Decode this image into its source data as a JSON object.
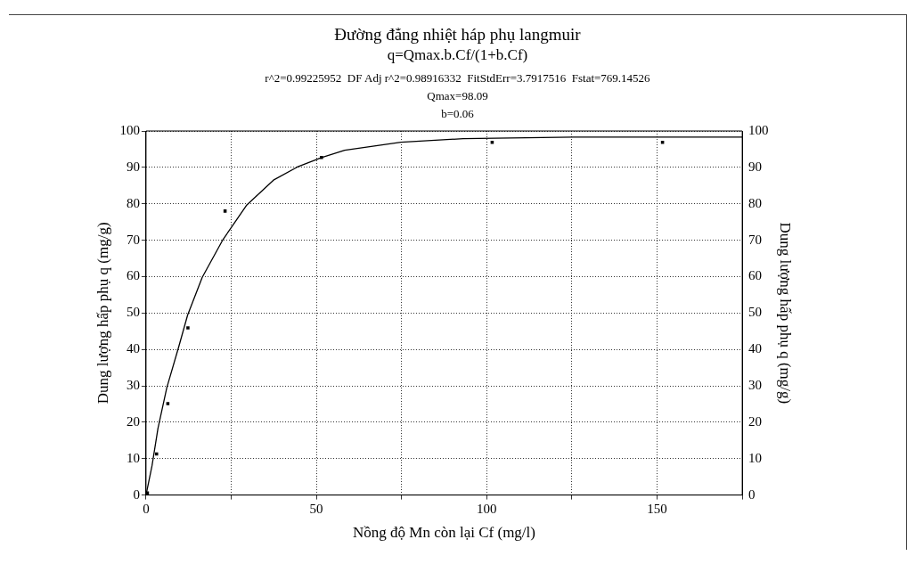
{
  "chart_data": {
    "type": "scatter",
    "title": "Đường đẳng nhiệt háp phụ langmuir",
    "subtitle": "q=Qmax.b.Cf/(1+b.Cf)",
    "annotations": [
      "r^2=0.99225952  DF Adj r^2=0.98916332  FitStdErr=3.7917516  Fstat=769.14526",
      "Qmax=98.09",
      "b=0.06"
    ],
    "xlabel": "Nồng độ Mn còn lại Cf (mg/l)",
    "ylabel": "Dung lượng hấp phụ q (mg/g)",
    "y2label": "Dung lượng hấp phụ q (mg/g)",
    "series": [
      {
        "type": "scatter",
        "color": "#000000",
        "marker": "square",
        "x": [
          0.4,
          3.1,
          6.4,
          12.3,
          23.2,
          51.5,
          101.6,
          151.6
        ],
        "values": [
          0.6,
          11.3,
          25.1,
          45.9,
          78,
          92.7,
          96.9,
          96.9
        ]
      },
      {
        "type": "line",
        "color": "#000000",
        "marker": "none",
        "line_style": "solid",
        "x": [
          0,
          1.75,
          3.5,
          6.1,
          9.6,
          12.2,
          16.5,
          22.6,
          29.6,
          37.4,
          44.4,
          51.5,
          58.3,
          74.8,
          93.1,
          125.4,
          175
        ],
        "values": [
          0,
          8,
          18.3,
          29.5,
          40.7,
          49.4,
          59.8,
          70.2,
          79.7,
          86.5,
          90.1,
          92.7,
          94.7,
          96.9,
          97.9,
          98.3,
          98.3
        ]
      }
    ],
    "xlim": [
      0,
      175
    ],
    "xticks": [
      0,
      {
        "value": 25,
        "label": null
      },
      50,
      {
        "value": 75,
        "label": null
      },
      100,
      {
        "value": 125,
        "label": null
      },
      150,
      {
        "value": 175,
        "label": null
      }
    ],
    "ylim": [
      0,
      100
    ],
    "yticks": [
      0,
      10,
      20,
      30,
      40,
      50,
      60,
      70,
      80,
      90,
      100
    ],
    "y2lim": [
      0,
      100
    ],
    "y2ticks": [
      0,
      10,
      20,
      30,
      40,
      50,
      60,
      70,
      80,
      90,
      100
    ],
    "grid": true,
    "legend": false
  }
}
